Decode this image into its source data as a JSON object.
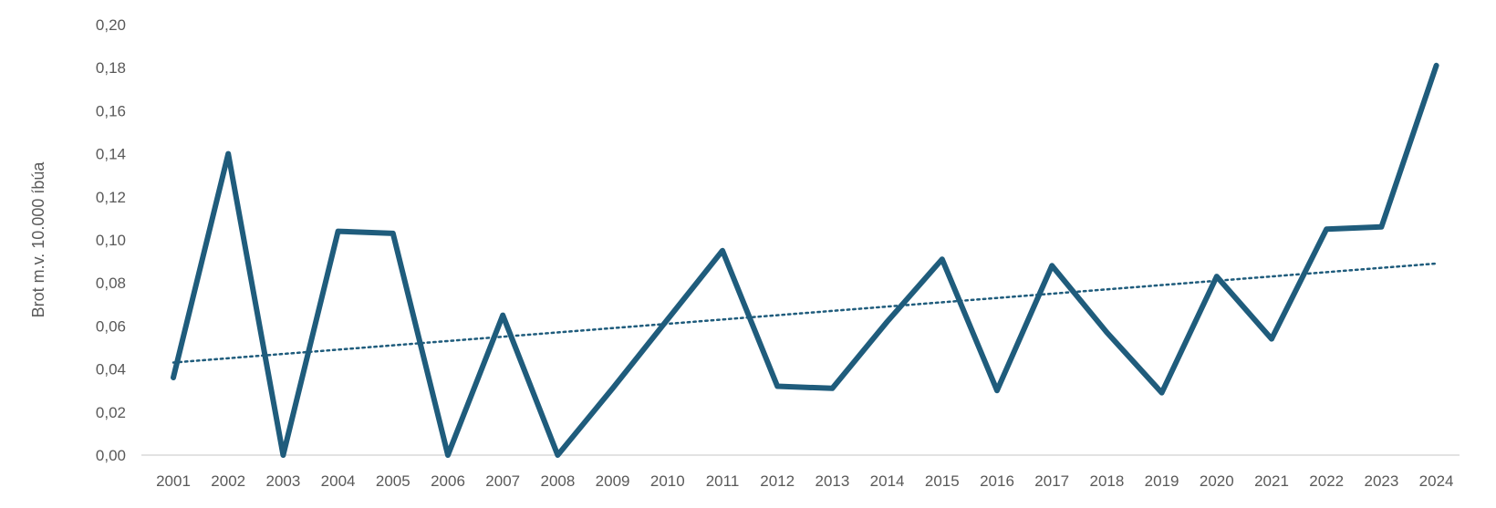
{
  "chart_data": {
    "type": "line",
    "title": "",
    "xlabel": "",
    "ylabel": "Brot m.v. 10.000 íbúa",
    "x": [
      "2001",
      "2002",
      "2003",
      "2004",
      "2005",
      "2006",
      "2007",
      "2008",
      "2009",
      "2010",
      "2011",
      "2012",
      "2013",
      "2014",
      "2015",
      "2016",
      "2017",
      "2018",
      "2019",
      "2020",
      "2021",
      "2022",
      "2023",
      "2024"
    ],
    "series": [
      {
        "values": [
          0.036,
          0.14,
          0.0,
          0.104,
          0.103,
          0.0,
          0.065,
          0.0,
          0.031,
          0.063,
          0.095,
          0.032,
          0.031,
          0.062,
          0.091,
          0.03,
          0.088,
          0.057,
          0.029,
          0.083,
          0.054,
          0.105,
          0.106,
          0.181
        ],
        "color": "#1f5c7c",
        "style": "solid"
      }
    ],
    "trendline": {
      "type": "linear",
      "start": 0.043,
      "end": 0.089,
      "color": "#1f5c7c",
      "style": "dotted"
    },
    "ylim": [
      0,
      0.2
    ],
    "yticks": [
      0.0,
      0.02,
      0.04,
      0.06,
      0.08,
      0.1,
      0.12,
      0.14,
      0.16,
      0.18,
      0.2
    ],
    "ytick_labels": [
      "0,00",
      "0,02",
      "0,04",
      "0,06",
      "0,08",
      "0,10",
      "0,12",
      "0,14",
      "0,16",
      "0,18",
      "0,20"
    ],
    "grid": false,
    "legend": "none",
    "axis_color": "#d9d9d9",
    "text_color": "#595959"
  }
}
